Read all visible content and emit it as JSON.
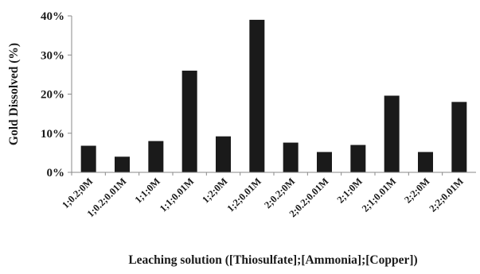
{
  "chart_data": {
    "type": "bar",
    "title": "",
    "xlabel": "Leaching solution ([Thiosulfate];[Ammonia];[Copper])",
    "ylabel": "Gold Dissolved (%)",
    "ylim": [
      0,
      40
    ],
    "yticks": [
      0,
      10,
      20,
      30,
      40
    ],
    "ytick_labels": [
      "0%",
      "10%",
      "20%",
      "30%",
      "40%"
    ],
    "grid": false,
    "bar_color": "#1a1a1a",
    "categories": [
      "1;0.2;0M",
      "1;0.2;0.01M",
      "1;1;0M",
      "1;1;0.01M",
      "1;2;0M",
      "1;2;0.01M",
      "2;0.2;0M",
      "2;0.2;0.01M",
      "2;1;0M",
      "2;1;0.01M",
      "2;2;0M",
      "2;2;0.01M"
    ],
    "values": [
      6.8,
      4.0,
      8.0,
      26.0,
      9.2,
      39.0,
      7.6,
      5.2,
      7.0,
      19.6,
      5.2,
      18.0
    ]
  }
}
